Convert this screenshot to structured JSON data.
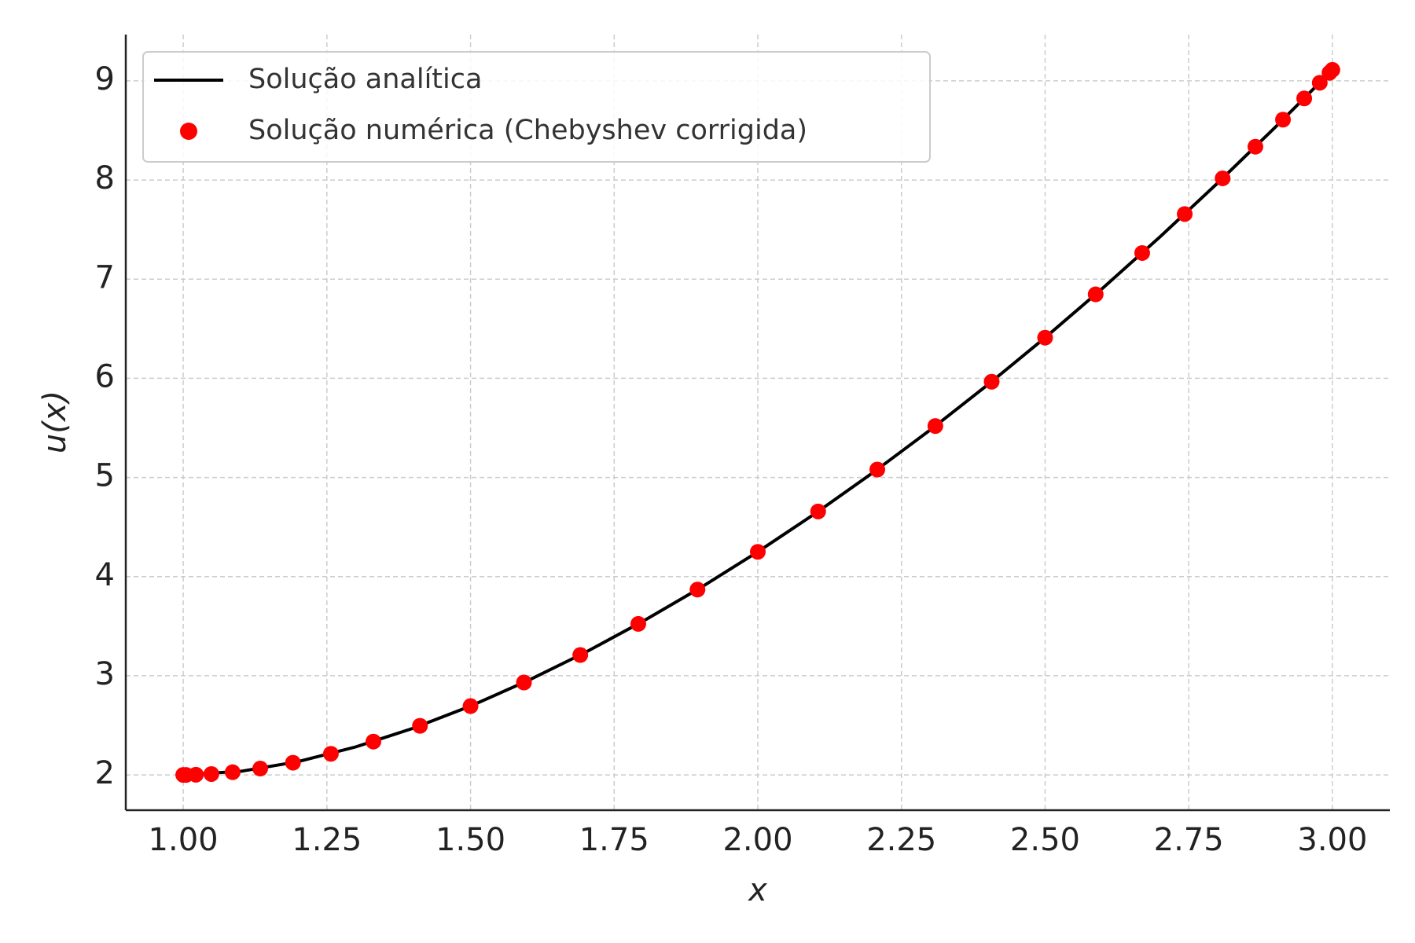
{
  "chart_data": {
    "type": "line",
    "xlabel": "x",
    "ylabel": "u(x)",
    "xlim": [
      0.9,
      3.1
    ],
    "ylim": [
      1.644,
      9.467
    ],
    "xticks": [
      {
        "value": 1,
        "label": "1.00"
      },
      1.25,
      {
        "value": 1.5,
        "label": "1.50"
      },
      1.75,
      {
        "value": 2,
        "label": "2.00"
      },
      2.25,
      {
        "value": 2.5,
        "label": "2.50"
      },
      2.75,
      {
        "value": 3,
        "label": "3.00"
      }
    ],
    "yticks": [
      2,
      3,
      4,
      5,
      6,
      7,
      8,
      9
    ],
    "grid": true,
    "legend": "upper left",
    "series": [
      {
        "name": "Solução analítica",
        "type": "line",
        "color": "#000000",
        "x": [
          1,
          1.1,
          1.2,
          1.3,
          1.4,
          1.5,
          1.6,
          1.7,
          1.8,
          1.9,
          2,
          2.1,
          2.2,
          2.3,
          2.4,
          2.5,
          2.6,
          2.7,
          2.8,
          2.9,
          3
        ],
        "values": [
          2,
          2.036,
          2.134,
          2.282,
          2.47,
          2.694,
          2.951,
          3.236,
          3.549,
          3.887,
          4.25,
          4.637,
          5.047,
          5.479,
          5.934,
          6.41,
          6.908,
          7.427,
          7.968,
          8.529,
          9.111
        ]
      },
      {
        "name": "Solução numérica (Chebyshev corrigida)",
        "type": "scatter",
        "color": "#ff0000",
        "x": [
          1,
          1.005,
          1.022,
          1.049,
          1.086,
          1.134,
          1.191,
          1.257,
          1.331,
          1.412,
          1.5,
          1.593,
          1.691,
          1.792,
          1.895,
          2,
          2.105,
          2.208,
          2.309,
          2.407,
          2.5,
          2.588,
          2.669,
          2.743,
          2.809,
          2.866,
          2.914,
          2.951,
          2.978,
          2.995,
          3
        ],
        "values": [
          2,
          2,
          2.002,
          2.009,
          2.027,
          2.064,
          2.123,
          2.213,
          2.336,
          2.495,
          2.694,
          2.932,
          3.209,
          3.523,
          3.869,
          4.25,
          4.657,
          5.08,
          5.519,
          5.966,
          6.41,
          6.847,
          7.264,
          7.657,
          8.017,
          8.336,
          8.609,
          8.823,
          8.981,
          9.082,
          9.111
        ]
      }
    ]
  }
}
